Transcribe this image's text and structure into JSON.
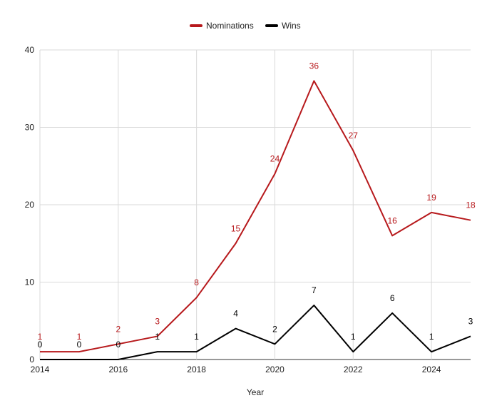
{
  "chart_data": {
    "type": "line",
    "xlabel": "Year",
    "ylabel": "",
    "x": [
      2014,
      2015,
      2016,
      2017,
      2018,
      2019,
      2020,
      2021,
      2022,
      2023,
      2024,
      2025
    ],
    "x_tick_labels": [
      "2014",
      "2016",
      "2018",
      "2020",
      "2022",
      "2024"
    ],
    "y_tick_labels": [
      "0",
      "10",
      "20",
      "30",
      "40"
    ],
    "ylim": [
      0,
      40
    ],
    "xlim": [
      2014,
      2025
    ],
    "grid": true,
    "legend_position": "top-center",
    "series": [
      {
        "name": "Nominations",
        "color": "#b7191c",
        "values": [
          1,
          1,
          2,
          3,
          8,
          15,
          24,
          36,
          27,
          16,
          19,
          18
        ],
        "labels": [
          "1",
          "1",
          "2",
          "3",
          "8",
          "15",
          "24",
          "36",
          "27",
          "16",
          "19",
          "18"
        ]
      },
      {
        "name": "Wins",
        "color": "#000000",
        "values": [
          0,
          0,
          0,
          1,
          1,
          4,
          2,
          7,
          1,
          6,
          1,
          3
        ],
        "labels": [
          "0",
          "0",
          "0",
          "1",
          "1",
          "4",
          "2",
          "7",
          "1",
          "6",
          "1",
          "3"
        ]
      }
    ]
  }
}
